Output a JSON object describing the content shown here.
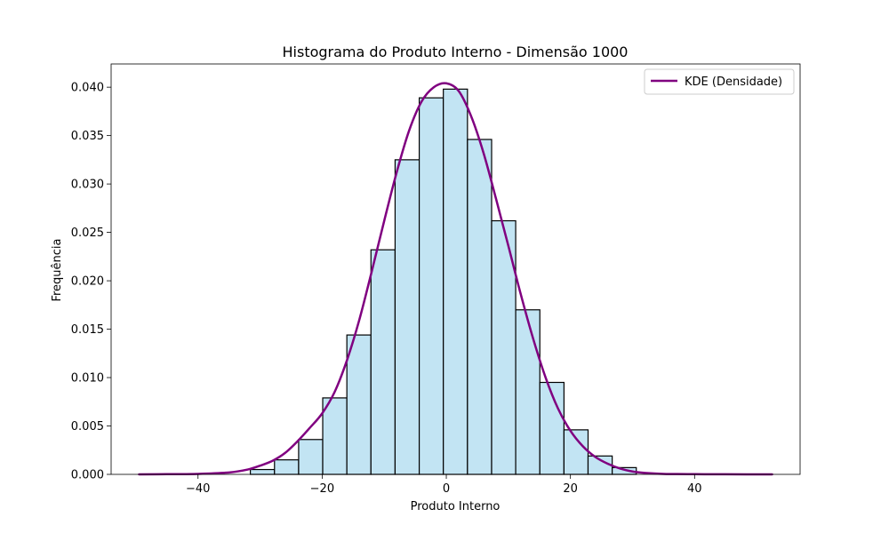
{
  "chart_data": {
    "type": "bar",
    "title": "Histograma do Produto Interno - Dimensão 1000",
    "xlabel": "Produto Interno",
    "ylabel": "Frequência",
    "xlim": [
      -54,
      57
    ],
    "ylim": [
      0,
      0.0424
    ],
    "xticks": [
      {
        "value": -40,
        "label": "−40"
      },
      {
        "value": -20,
        "label": "−20"
      },
      {
        "value": 0,
        "label": "0"
      },
      {
        "value": 20,
        "label": "20"
      },
      {
        "value": 40,
        "label": "40"
      }
    ],
    "yticks": [
      {
        "value": 0,
        "label": "0.000"
      },
      {
        "value": 0.005,
        "label": "0.005"
      },
      {
        "value": 0.01,
        "label": "0.010"
      },
      {
        "value": 0.015,
        "label": "0.015"
      },
      {
        "value": 0.02,
        "label": "0.020"
      },
      {
        "value": 0.025,
        "label": "0.025"
      },
      {
        "value": 0.03,
        "label": "0.030"
      },
      {
        "value": 0.035,
        "label": "0.035"
      },
      {
        "value": 0.04,
        "label": "0.040"
      }
    ],
    "grid": false,
    "legend": {
      "position": "upper right",
      "entries": [
        "KDE (Densidade)"
      ]
    },
    "histogram": {
      "bin_width": 3.886,
      "bin_edges": [
        -31.57,
        -27.68,
        -23.79,
        -19.91,
        -16.02,
        -12.14,
        -8.25,
        -4.36,
        -0.48,
        3.41,
        7.3,
        11.18,
        15.07,
        18.96,
        22.84,
        26.73,
        30.61
      ],
      "values": [
        0.0005,
        0.0015,
        0.0036,
        0.0079,
        0.0144,
        0.0232,
        0.0325,
        0.0389,
        0.0398,
        0.0346,
        0.0262,
        0.017,
        0.0095,
        0.0046,
        0.0019,
        0.0007
      ],
      "face_color": "#c2e4f3",
      "edge_color": "#000000"
    },
    "series": [
      {
        "name": "KDE (Densidade)",
        "color": "#800080",
        "x": [
          -49.5,
          -45,
          -40,
          -35,
          -32,
          -30,
          -28,
          -26,
          -24,
          -22,
          -20,
          -18,
          -16,
          -14,
          -12,
          -10,
          -8,
          -6,
          -4,
          -2,
          0,
          2,
          4,
          6,
          8,
          10,
          12,
          14,
          16,
          18,
          20,
          22,
          24,
          26,
          28,
          30,
          32,
          35,
          40,
          45,
          52.5
        ],
        "y": [
          0.0,
          2e-05,
          5e-05,
          0.0002,
          0.0005,
          0.0009,
          0.0014,
          0.0022,
          0.0034,
          0.0048,
          0.0063,
          0.0085,
          0.0118,
          0.016,
          0.021,
          0.0262,
          0.0312,
          0.0355,
          0.0385,
          0.04,
          0.0404,
          0.0396,
          0.037,
          0.0332,
          0.0285,
          0.0236,
          0.0186,
          0.014,
          0.01,
          0.0068,
          0.0045,
          0.0029,
          0.0018,
          0.0011,
          0.0006,
          0.0003,
          0.00015,
          5e-05,
          2e-05,
          1e-05,
          0.0
        ]
      }
    ]
  }
}
